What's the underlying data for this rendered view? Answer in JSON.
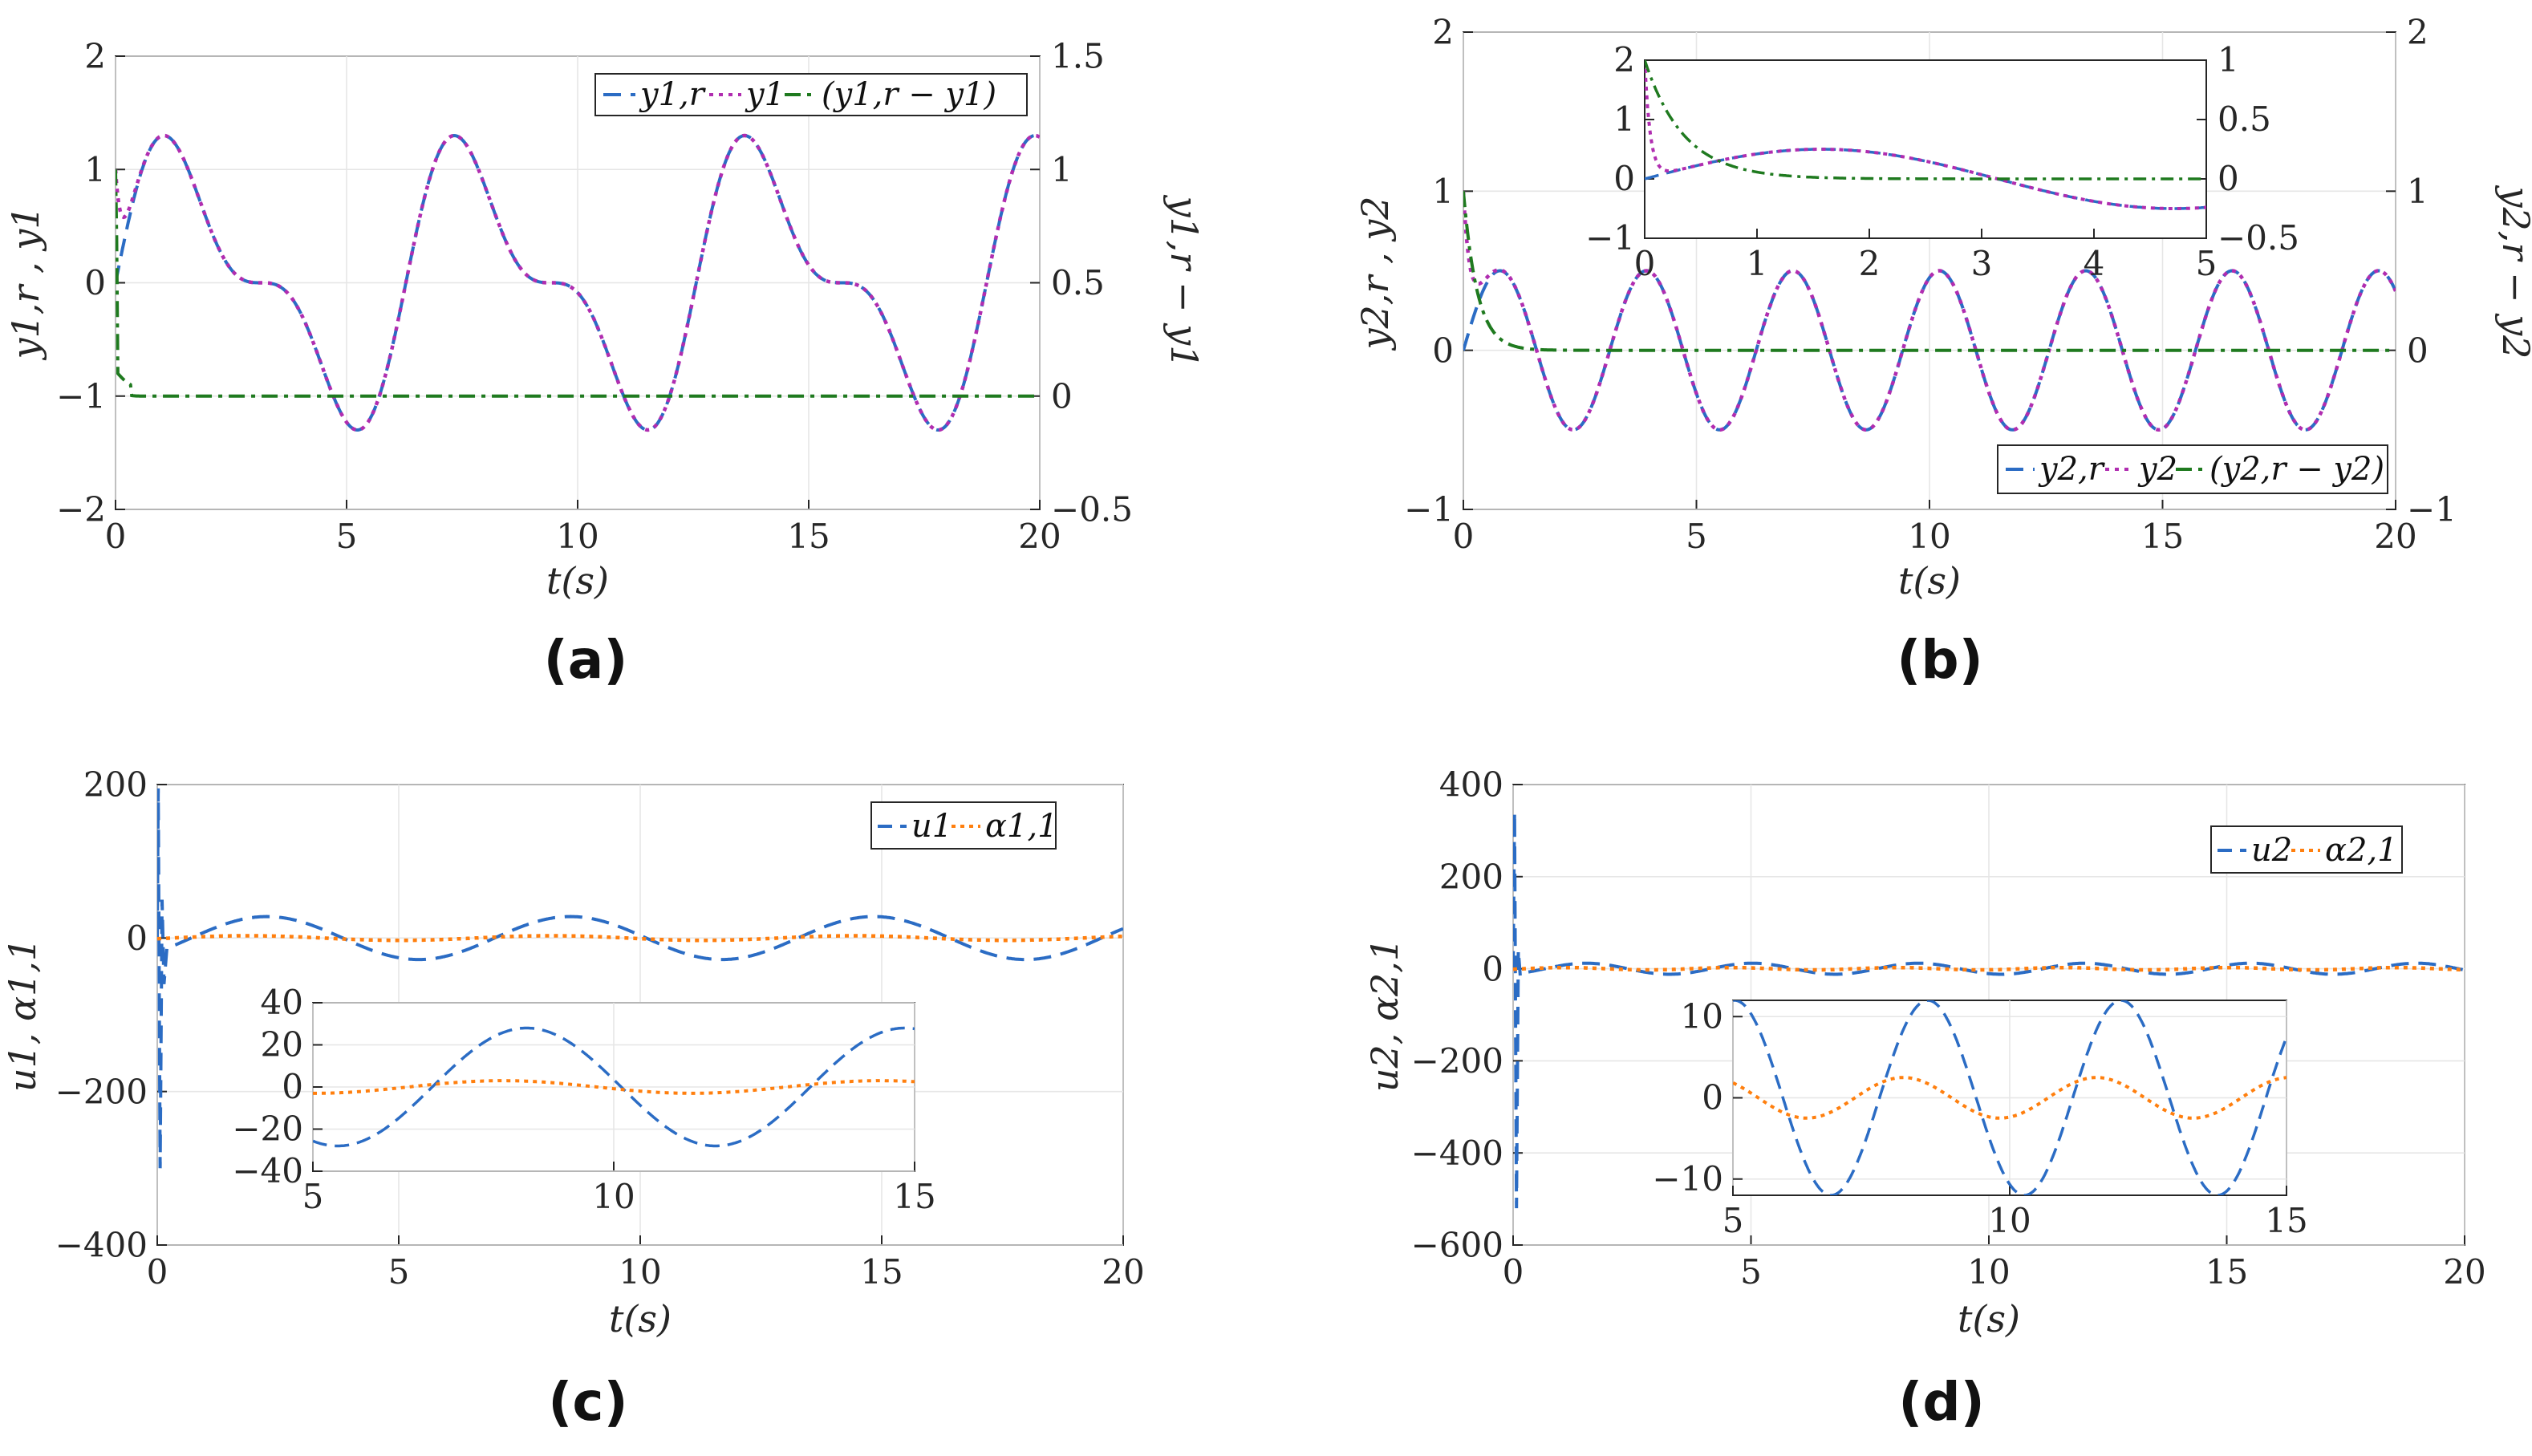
{
  "chart_data": [
    {
      "panel": "(a)",
      "type": "line",
      "xlabel": "t(s)",
      "ylabel_left": "y1,r , y1",
      "ylabel_right": "y1,r − y1",
      "xlim": [
        0,
        20
      ],
      "ylim_left": [
        -2,
        2
      ],
      "ylim_right": [
        -0.5,
        1.5
      ],
      "xticks": [
        "0",
        "5",
        "10",
        "15",
        "20"
      ],
      "yticks_left": [
        "−2",
        "−1",
        "0",
        "1",
        "2"
      ],
      "yticks_right": [
        "−0.5",
        "0",
        "0.5",
        "1",
        "1.5"
      ],
      "colors": {
        "left_axis": "#1a1aff",
        "right_axis": "#1f7a1f",
        "ref": "#2b6cc4",
        "out": "#b02db0",
        "err": "#1f7a1f"
      },
      "legend": [
        "y1,r",
        "y1",
        "(y1,r − y1)"
      ],
      "series": [
        {
          "name": "y1,r",
          "axis": "left",
          "style": "dashed",
          "model": "sin(t)+0.5sin(2t)",
          "amplitude": 1.3,
          "period": 6.28
        },
        {
          "name": "y1",
          "axis": "left",
          "style": "dotted",
          "initial": 1.0,
          "note": "tracks y1,r after ~0.5s"
        },
        {
          "name": "(y1,r − y1)",
          "axis": "right",
          "style": "dashdot",
          "initial": 1.0,
          "settle_time": 0.5,
          "final": 0.0
        }
      ]
    },
    {
      "panel": "(b)",
      "type": "line",
      "xlabel": "t(s)",
      "ylabel_left": "y2,r , y2",
      "ylabel_right": "y2,r − y2",
      "xlim": [
        0,
        20
      ],
      "ylim_left": [
        -1,
        2
      ],
      "ylim_right": [
        -1,
        2
      ],
      "xticks": [
        "0",
        "5",
        "10",
        "15",
        "20"
      ],
      "yticks_left": [
        "−1",
        "0",
        "1",
        "2"
      ],
      "yticks_right": [
        "−1",
        "0",
        "1",
        "2"
      ],
      "colors": {
        "left_axis": "#1a1aff",
        "right_axis": "#1f7a1f",
        "ref": "#2b6cc4",
        "out": "#b02db0",
        "err": "#1f7a1f"
      },
      "legend": [
        "y2,r",
        "y2",
        "(y2,r − y2)"
      ],
      "series": [
        {
          "name": "y2,r",
          "axis": "left",
          "style": "dashed",
          "amplitude": 0.5,
          "period": 3.14,
          "initial": 0.0
        },
        {
          "name": "y2",
          "axis": "left",
          "style": "dotted",
          "initial": 1.0
        },
        {
          "name": "(y2,r − y2)",
          "axis": "right",
          "style": "dashdot",
          "initial": 1.0,
          "settle_time": 1.5,
          "final": 0.0
        }
      ],
      "inset": {
        "xlim": [
          0,
          5
        ],
        "ylim_left": [
          -1,
          2
        ],
        "ylim_right": [
          -0.5,
          1
        ],
        "xticks": [
          "0",
          "1",
          "2",
          "3",
          "4",
          "5"
        ],
        "yticks_left": [
          "−1",
          "0",
          "1",
          "2"
        ],
        "yticks_right": [
          "−0.5",
          "0",
          "0.5",
          "1"
        ],
        "period": 6.28,
        "amplitude": 0.5
      }
    },
    {
      "panel": "(c)",
      "type": "line",
      "xlabel": "t(s)",
      "ylabel": "u1, α1,1",
      "xlim": [
        0,
        20
      ],
      "ylim": [
        -400,
        200
      ],
      "xticks": [
        "0",
        "5",
        "10",
        "15",
        "20"
      ],
      "yticks": [
        "−400",
        "−200",
        "0",
        "200"
      ],
      "colors": {
        "u": "#2b6cc4",
        "alpha": "#ff7f0e"
      },
      "legend": [
        "u1",
        "α1,1"
      ],
      "series": [
        {
          "name": "u1",
          "style": "dashed",
          "amplitude": 28,
          "period": 6.28,
          "spike_max": 195,
          "spike_min": -300
        },
        {
          "name": "α1,1",
          "style": "dotted",
          "amplitude": 3,
          "period": 6.28
        }
      ],
      "inset": {
        "xlim": [
          5,
          15
        ],
        "ylim": [
          -40,
          40
        ],
        "xticks": [
          "5",
          "10",
          "15"
        ],
        "yticks": [
          "−40",
          "−20",
          "0",
          "20",
          "40"
        ]
      }
    },
    {
      "panel": "(d)",
      "type": "line",
      "xlabel": "t(s)",
      "ylabel": "u2, α2,1",
      "xlim": [
        0,
        20
      ],
      "ylim": [
        -600,
        400
      ],
      "xticks": [
        "0",
        "5",
        "10",
        "15",
        "20"
      ],
      "yticks": [
        "−600",
        "−400",
        "−200",
        "0",
        "200",
        "400"
      ],
      "colors": {
        "u": "#2b6cc4",
        "alpha": "#ff7f0e"
      },
      "legend": [
        "u2",
        "α2,1"
      ],
      "series": [
        {
          "name": "u2",
          "style": "dashed",
          "amplitude": 12,
          "period": 3.14,
          "spike_max": 340,
          "spike_min": -520
        },
        {
          "name": "α2,1",
          "style": "dotted",
          "amplitude": 2.5,
          "period": 3.14
        }
      ],
      "inset": {
        "xlim": [
          5,
          15
        ],
        "ylim": [
          -12,
          12
        ],
        "xticks": [
          "5",
          "10",
          "15"
        ],
        "yticks": [
          "−10",
          "0",
          "10"
        ]
      }
    }
  ]
}
